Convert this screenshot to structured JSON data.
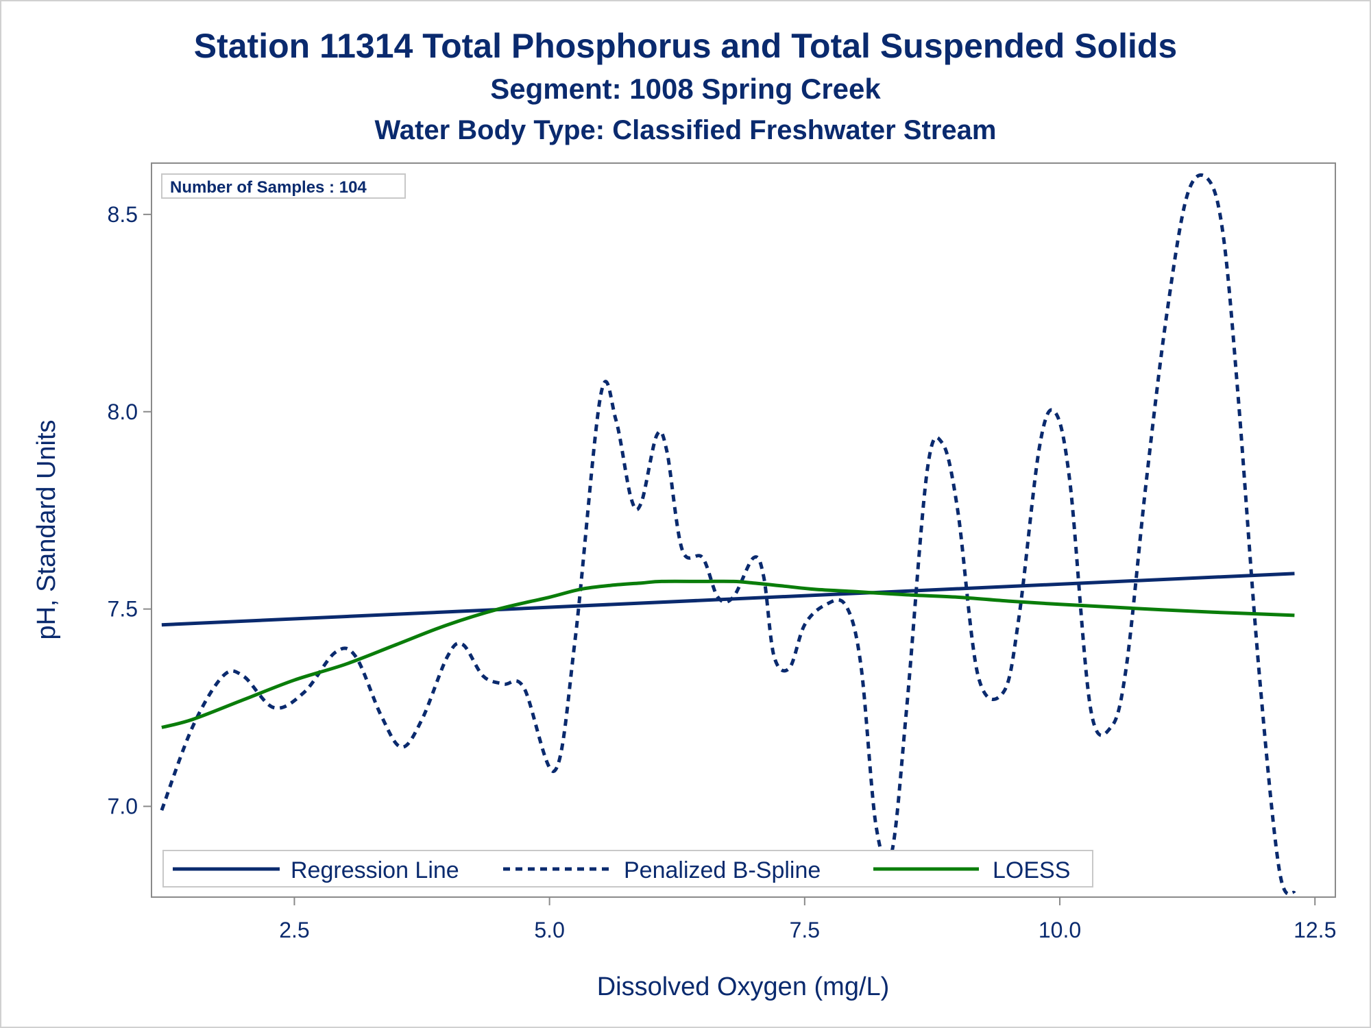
{
  "chart_data": {
    "type": "line",
    "title": "Station 11314  Total Phosphorus and Total Suspended Solids",
    "subtitle": "Segment: 1008  Spring Creek",
    "subtitle2": "Water Body Type: Classified Freshwater Stream",
    "xlabel": "Dissolved Oxygen (mg/L)",
    "ylabel": "pH, Standard Units",
    "xlim": [
      1.1,
      12.7
    ],
    "ylim": [
      6.77,
      8.63
    ],
    "xticks": [
      2.5,
      5.0,
      7.5,
      10.0,
      12.5
    ],
    "xtick_labels": [
      "2.5",
      "5.0",
      "7.5",
      "10.0",
      "12.5"
    ],
    "yticks": [
      7.0,
      7.5,
      8.0,
      8.5
    ],
    "ytick_labels": [
      "7.0",
      "7.5",
      "8.0",
      "8.5"
    ],
    "inset_label": "Number of Samples : 104",
    "legend_position": "bottom-left inside",
    "grid": false,
    "series": [
      {
        "name": "Regression Line",
        "style": "solid",
        "color": "#0a2a6e",
        "x": [
          1.2,
          12.3
        ],
        "y": [
          7.46,
          7.59
        ]
      },
      {
        "name": "Penalized B-Spline",
        "style": "dashed",
        "color": "#0a2a6e",
        "x": [
          1.2,
          1.5,
          1.8,
          2.0,
          2.3,
          2.6,
          2.9,
          3.1,
          3.35,
          3.55,
          3.75,
          4.0,
          4.15,
          4.35,
          4.55,
          4.75,
          5.05,
          5.25,
          5.5,
          5.65,
          5.8,
          5.9,
          6.05,
          6.15,
          6.3,
          6.5,
          6.65,
          6.8,
          7.0,
          7.1,
          7.2,
          7.35,
          7.5,
          7.7,
          7.9,
          8.05,
          8.2,
          8.35,
          8.5,
          8.7,
          8.85,
          9.0,
          9.2,
          9.45,
          9.6,
          9.8,
          9.95,
          10.1,
          10.3,
          10.5,
          10.65,
          10.85,
          11.05,
          11.25,
          11.45,
          11.6,
          11.75,
          11.95,
          12.15,
          12.3
        ],
        "y": [
          6.99,
          7.2,
          7.33,
          7.33,
          7.25,
          7.29,
          7.39,
          7.38,
          7.23,
          7.15,
          7.22,
          7.38,
          7.41,
          7.33,
          7.31,
          7.3,
          7.09,
          7.42,
          8.04,
          7.98,
          7.78,
          7.77,
          7.94,
          7.9,
          7.65,
          7.63,
          7.53,
          7.53,
          7.63,
          7.58,
          7.38,
          7.35,
          7.46,
          7.51,
          7.51,
          7.36,
          6.95,
          6.88,
          7.25,
          7.85,
          7.92,
          7.75,
          7.33,
          7.29,
          7.48,
          7.91,
          8.0,
          7.82,
          7.25,
          7.2,
          7.35,
          7.83,
          8.25,
          8.55,
          8.59,
          8.45,
          8.03,
          7.35,
          6.84,
          6.78
        ]
      },
      {
        "name": "LOESS",
        "style": "solid",
        "color": "#0a7d0a",
        "x": [
          1.2,
          1.5,
          2.0,
          2.5,
          3.0,
          3.5,
          4.0,
          4.5,
          5.0,
          5.3,
          5.6,
          5.9,
          6.1,
          6.5,
          6.8,
          7.0,
          7.3,
          7.6,
          8.0,
          8.5,
          9.0,
          9.5,
          10.0,
          10.5,
          11.0,
          11.5,
          12.0,
          12.3
        ],
        "y": [
          7.2,
          7.22,
          7.27,
          7.32,
          7.36,
          7.41,
          7.46,
          7.5,
          7.53,
          7.55,
          7.56,
          7.566,
          7.57,
          7.57,
          7.57,
          7.566,
          7.558,
          7.55,
          7.544,
          7.536,
          7.53,
          7.52,
          7.512,
          7.505,
          7.498,
          7.492,
          7.487,
          7.484
        ]
      }
    ]
  }
}
